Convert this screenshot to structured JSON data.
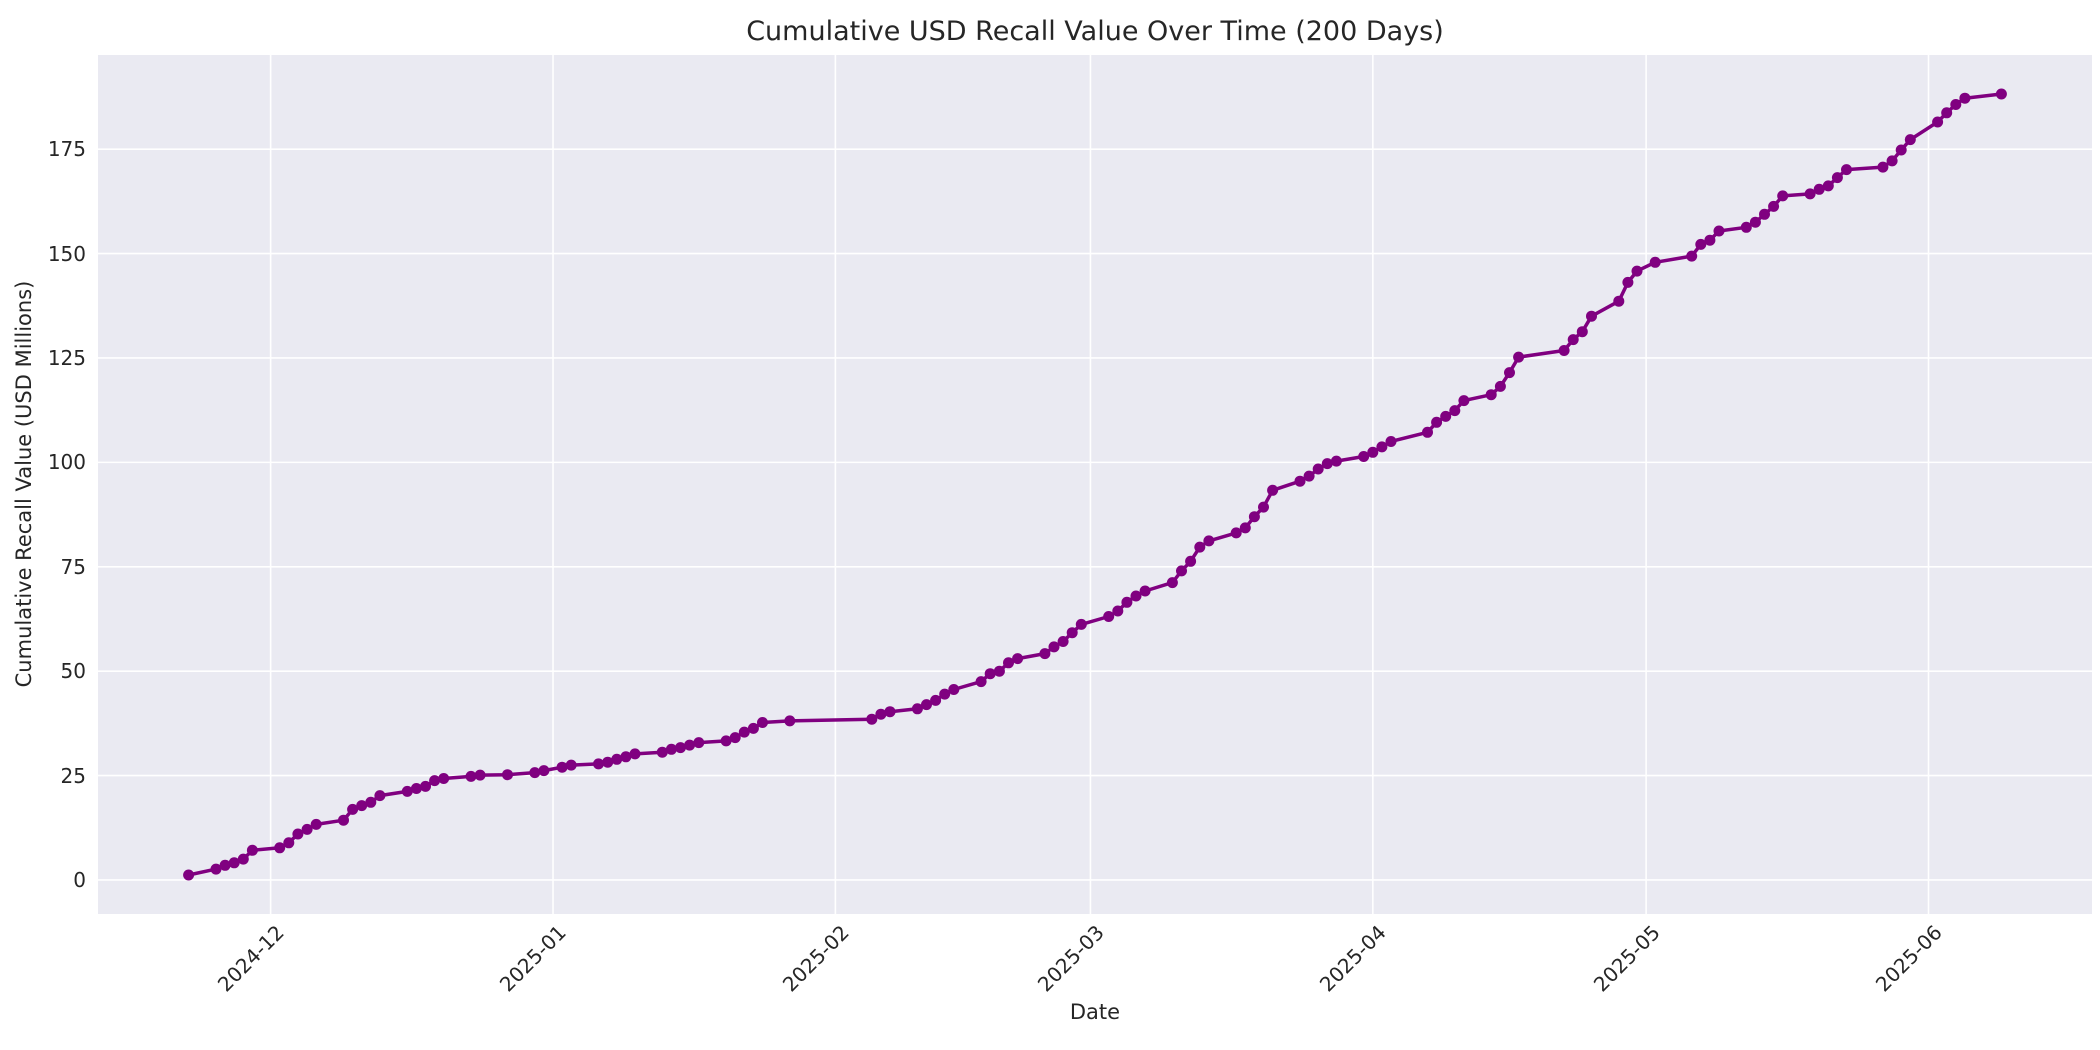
{
  "chart_data": {
    "type": "line",
    "title": "Cumulative USD Recall Value Over Time (200 Days)",
    "xlabel": "Date",
    "ylabel": "Cumulative Recall Value (USD Millions)",
    "legend_position": "none",
    "grid": true,
    "plot_background": "#EAEAF2",
    "grid_color": "#FFFFFF",
    "text_color": "#262626",
    "line_color": "#800080",
    "marker": "circle",
    "yticks": [
      0,
      25,
      50,
      75,
      100,
      125,
      150,
      175
    ],
    "ylim": [
      -8.15,
      197.55
    ],
    "x_margin_frac": 0.05,
    "xticks": [
      {
        "label": "2024-12",
        "date": "2024-12-01"
      },
      {
        "label": "2025-01",
        "date": "2025-01-01"
      },
      {
        "label": "2025-02",
        "date": "2025-02-01"
      },
      {
        "label": "2025-03",
        "date": "2025-03-01"
      },
      {
        "label": "2025-04",
        "date": "2025-04-01"
      },
      {
        "label": "2025-05",
        "date": "2025-05-01"
      },
      {
        "label": "2025-06",
        "date": "2025-06-01"
      }
    ],
    "series": [
      {
        "name": "cumulative_recall_value_usd_millions",
        "points": [
          [
            "2024-11-22",
            1.2
          ],
          [
            "2024-11-25",
            2.6
          ],
          [
            "2024-11-26",
            3.5
          ],
          [
            "2024-11-27",
            4.1
          ],
          [
            "2024-11-28",
            5.0
          ],
          [
            "2024-11-29",
            7.1
          ],
          [
            "2024-12-02",
            7.7
          ],
          [
            "2024-12-03",
            8.9
          ],
          [
            "2024-12-04",
            11.0
          ],
          [
            "2024-12-05",
            12.1
          ],
          [
            "2024-12-06",
            13.3
          ],
          [
            "2024-12-09",
            14.3
          ],
          [
            "2024-12-10",
            16.9
          ],
          [
            "2024-12-11",
            17.8
          ],
          [
            "2024-12-12",
            18.6
          ],
          [
            "2024-12-13",
            20.2
          ],
          [
            "2024-12-16",
            21.2
          ],
          [
            "2024-12-17",
            21.9
          ],
          [
            "2024-12-18",
            22.4
          ],
          [
            "2024-12-19",
            23.8
          ],
          [
            "2024-12-20",
            24.3
          ],
          [
            "2024-12-23",
            24.8
          ],
          [
            "2024-12-24",
            25.1
          ],
          [
            "2024-12-27",
            25.2
          ],
          [
            "2024-12-30",
            25.7
          ],
          [
            "2024-12-31",
            26.2
          ],
          [
            "2025-01-02",
            27.0
          ],
          [
            "2025-01-03",
            27.5
          ],
          [
            "2025-01-06",
            27.8
          ],
          [
            "2025-01-07",
            28.2
          ],
          [
            "2025-01-08",
            28.9
          ],
          [
            "2025-01-09",
            29.5
          ],
          [
            "2025-01-10",
            30.2
          ],
          [
            "2025-01-13",
            30.6
          ],
          [
            "2025-01-14",
            31.3
          ],
          [
            "2025-01-15",
            31.7
          ],
          [
            "2025-01-16",
            32.3
          ],
          [
            "2025-01-17",
            32.9
          ],
          [
            "2025-01-20",
            33.3
          ],
          [
            "2025-01-21",
            34.1
          ],
          [
            "2025-01-22",
            35.4
          ],
          [
            "2025-01-23",
            36.3
          ],
          [
            "2025-01-24",
            37.7
          ],
          [
            "2025-01-27",
            38.1
          ],
          [
            "2025-02-05",
            38.5
          ],
          [
            "2025-02-06",
            39.7
          ],
          [
            "2025-02-07",
            40.3
          ],
          [
            "2025-02-10",
            41.0
          ],
          [
            "2025-02-11",
            42.0
          ],
          [
            "2025-02-12",
            43.0
          ],
          [
            "2025-02-13",
            44.5
          ],
          [
            "2025-02-14",
            45.6
          ],
          [
            "2025-02-17",
            47.5
          ],
          [
            "2025-02-18",
            49.4
          ],
          [
            "2025-02-19",
            50.0
          ],
          [
            "2025-02-20",
            52.0
          ],
          [
            "2025-02-21",
            53.0
          ],
          [
            "2025-02-24",
            54.2
          ],
          [
            "2025-02-25",
            55.8
          ],
          [
            "2025-02-26",
            57.1
          ],
          [
            "2025-02-27",
            59.2
          ],
          [
            "2025-02-28",
            61.2
          ],
          [
            "2025-03-03",
            63.1
          ],
          [
            "2025-03-04",
            64.4
          ],
          [
            "2025-03-05",
            66.5
          ],
          [
            "2025-03-06",
            68.0
          ],
          [
            "2025-03-07",
            69.2
          ],
          [
            "2025-03-10",
            71.2
          ],
          [
            "2025-03-11",
            74.0
          ],
          [
            "2025-03-12",
            76.3
          ],
          [
            "2025-03-13",
            79.7
          ],
          [
            "2025-03-14",
            81.2
          ],
          [
            "2025-03-17",
            83.1
          ],
          [
            "2025-03-18",
            84.3
          ],
          [
            "2025-03-19",
            87.0
          ],
          [
            "2025-03-20",
            89.3
          ],
          [
            "2025-03-21",
            93.3
          ],
          [
            "2025-03-24",
            95.5
          ],
          [
            "2025-03-25",
            96.7
          ],
          [
            "2025-03-26",
            98.4
          ],
          [
            "2025-03-27",
            99.7
          ],
          [
            "2025-03-28",
            100.3
          ],
          [
            "2025-03-31",
            101.4
          ],
          [
            "2025-04-01",
            102.4
          ],
          [
            "2025-04-02",
            103.7
          ],
          [
            "2025-04-03",
            105.0
          ],
          [
            "2025-04-07",
            107.2
          ],
          [
            "2025-04-08",
            109.6
          ],
          [
            "2025-04-09",
            111.0
          ],
          [
            "2025-04-10",
            112.4
          ],
          [
            "2025-04-11",
            114.8
          ],
          [
            "2025-04-14",
            116.2
          ],
          [
            "2025-04-15",
            118.2
          ],
          [
            "2025-04-16",
            121.5
          ],
          [
            "2025-04-17",
            125.2
          ],
          [
            "2025-04-22",
            126.8
          ],
          [
            "2025-04-23",
            129.4
          ],
          [
            "2025-04-24",
            131.3
          ],
          [
            "2025-04-25",
            135.0
          ],
          [
            "2025-04-28",
            138.6
          ],
          [
            "2025-04-29",
            143.1
          ],
          [
            "2025-04-30",
            145.8
          ],
          [
            "2025-05-02",
            147.9
          ],
          [
            "2025-05-06",
            149.4
          ],
          [
            "2025-05-07",
            152.2
          ],
          [
            "2025-05-08",
            153.2
          ],
          [
            "2025-05-09",
            155.4
          ],
          [
            "2025-05-12",
            156.3
          ],
          [
            "2025-05-13",
            157.5
          ],
          [
            "2025-05-14",
            159.4
          ],
          [
            "2025-05-15",
            161.3
          ],
          [
            "2025-05-16",
            163.8
          ],
          [
            "2025-05-19",
            164.3
          ],
          [
            "2025-05-20",
            165.4
          ],
          [
            "2025-05-21",
            166.2
          ],
          [
            "2025-05-22",
            168.2
          ],
          [
            "2025-05-23",
            170.1
          ],
          [
            "2025-05-27",
            170.7
          ],
          [
            "2025-05-28",
            172.2
          ],
          [
            "2025-05-29",
            174.8
          ],
          [
            "2025-05-30",
            177.3
          ],
          [
            "2025-06-02",
            181.5
          ],
          [
            "2025-06-03",
            183.7
          ],
          [
            "2025-06-04",
            185.7
          ],
          [
            "2025-06-05",
            187.2
          ],
          [
            "2025-06-09",
            188.2
          ]
        ]
      }
    ]
  }
}
